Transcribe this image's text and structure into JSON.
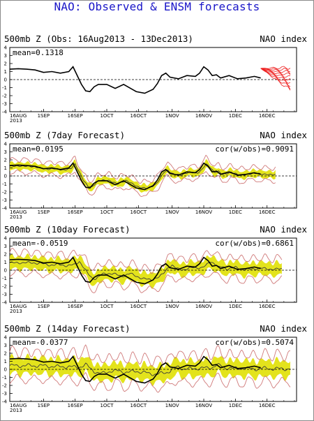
{
  "title": "NAO: Observed & ENSM forecasts",
  "colors": {
    "title": "#1a16c8",
    "observed": "#000000",
    "forecast_line": "#3a3a3a",
    "spread": "#e3e31c",
    "envelope": "#d07a7a",
    "members": "#ee2222"
  },
  "chart_data": [
    {
      "type": "line",
      "title": "500mb Z (Obs: 16Aug2013 - 13Dec2013)",
      "right_label": "NAO index",
      "mean_label": "mean=0.1318",
      "cor_label": "",
      "ylim": [
        -4,
        4
      ],
      "yticks": [
        "4",
        "3",
        "2",
        "1",
        "0",
        "-1",
        "-2",
        "-3",
        "-4"
      ],
      "xticks": [
        "16AUG\n2013",
        "1SEP",
        "16SEP",
        "1OCT",
        "16OCT",
        "1NOV",
        "16NOV",
        "1DEC",
        "16DEC"
      ],
      "x_day_labels": [
        0,
        16,
        31,
        46,
        61,
        77,
        92,
        107,
        122
      ],
      "grid": false,
      "series": [
        {
          "role": "observed",
          "x": [
            0,
            4,
            8,
            12,
            16,
            20,
            24,
            28,
            30,
            32,
            34,
            36,
            38,
            40,
            42,
            46,
            50,
            54,
            58,
            60,
            64,
            68,
            70,
            72,
            74,
            76,
            80,
            84,
            88,
            90,
            92,
            94,
            96,
            98,
            100,
            104,
            108,
            112,
            116,
            119
          ],
          "values": [
            1.3,
            1.35,
            1.3,
            1.2,
            0.9,
            1.0,
            0.8,
            1.0,
            1.6,
            0.5,
            -0.6,
            -1.4,
            -1.5,
            -0.9,
            -0.6,
            -0.6,
            -1.1,
            -0.6,
            -1.2,
            -1.5,
            -1.7,
            -1.2,
            -0.5,
            0.5,
            0.8,
            0.3,
            0.1,
            0.5,
            0.4,
            0.8,
            1.6,
            1.2,
            0.5,
            0.6,
            0.2,
            0.5,
            0.1,
            0.2,
            0.4,
            0.2
          ]
        },
        {
          "role": "ensemble-forecast",
          "x_start": 119,
          "x_end": 133,
          "members": 10,
          "end_range": [
            -1.3,
            1.5
          ],
          "start_value": 1.4
        }
      ]
    },
    {
      "type": "line",
      "title": "500mb Z (7day Forecast)",
      "right_label": "NAO index",
      "mean_label": "mean=0.0195",
      "cor_label": "cor(w/obs)=0.9091",
      "ylim": [
        -4,
        4
      ],
      "yticks": [
        "4",
        "3",
        "2",
        "1",
        "0",
        "-1",
        "-2",
        "-3",
        "-4"
      ],
      "xticks": [
        "16AUG\n2013",
        "1SEP",
        "16SEP",
        "1OCT",
        "16OCT",
        "1NOV",
        "16NOV",
        "1DEC",
        "16DEC"
      ],
      "grid": false,
      "series": [
        {
          "role": "observed",
          "x": [
            0,
            4,
            8,
            12,
            16,
            20,
            24,
            28,
            30,
            32,
            34,
            36,
            38,
            40,
            42,
            46,
            50,
            54,
            58,
            60,
            64,
            68,
            70,
            72,
            74,
            76,
            80,
            84,
            88,
            90,
            92,
            94,
            96,
            98,
            100,
            104,
            108,
            112,
            116,
            119
          ],
          "values": [
            1.3,
            1.35,
            1.3,
            1.2,
            0.9,
            1.0,
            0.8,
            1.0,
            1.6,
            0.5,
            -0.6,
            -1.4,
            -1.5,
            -0.9,
            -0.6,
            -0.6,
            -1.1,
            -0.6,
            -1.2,
            -1.5,
            -1.7,
            -1.2,
            -0.5,
            0.5,
            0.8,
            0.3,
            0.1,
            0.5,
            0.4,
            0.8,
            1.6,
            1.2,
            0.5,
            0.6,
            0.2,
            0.5,
            0.1,
            0.2,
            0.4,
            0.2
          ]
        },
        {
          "role": "ensemble-mean",
          "lag": 1.0,
          "damping": 0.92,
          "spread_inner": 0.45,
          "spread_outer": 0.8,
          "x_end": 126
        }
      ]
    },
    {
      "type": "line",
      "title": "500mb Z (10day Forecast)",
      "right_label": "NAO index",
      "mean_label": "mean=-0.0519",
      "cor_label": "cor(w/obs)=0.6861",
      "ylim": [
        -4,
        4
      ],
      "yticks": [
        "4",
        "3",
        "2",
        "1",
        "0",
        "-1",
        "-2",
        "-3",
        "-4"
      ],
      "xticks": [
        "16AUG\n2013",
        "1SEP",
        "16SEP",
        "1OCT",
        "16OCT",
        "1NOV",
        "16NOV",
        "1DEC",
        "16DEC"
      ],
      "grid": false,
      "series": [
        {
          "role": "observed",
          "x": [
            0,
            4,
            8,
            12,
            16,
            20,
            24,
            28,
            30,
            32,
            34,
            36,
            38,
            40,
            42,
            46,
            50,
            54,
            58,
            60,
            64,
            68,
            70,
            72,
            74,
            76,
            80,
            84,
            88,
            90,
            92,
            94,
            96,
            98,
            100,
            104,
            108,
            112,
            116,
            119
          ],
          "values": [
            1.3,
            1.35,
            1.3,
            1.2,
            0.9,
            1.0,
            0.8,
            1.0,
            1.6,
            0.5,
            -0.6,
            -1.4,
            -1.5,
            -0.9,
            -0.6,
            -0.6,
            -1.1,
            -0.6,
            -1.2,
            -1.5,
            -1.7,
            -1.2,
            -0.5,
            0.5,
            0.8,
            0.3,
            0.1,
            0.5,
            0.4,
            0.8,
            1.6,
            1.2,
            0.5,
            0.6,
            0.2,
            0.5,
            0.1,
            0.2,
            0.4,
            0.2
          ]
        },
        {
          "role": "ensemble-mean",
          "lag": 3.0,
          "damping": 0.7,
          "spread_inner": 0.8,
          "spread_outer": 1.3,
          "x_end": 129
        }
      ]
    },
    {
      "type": "line",
      "title": "500mb Z (14day Forecast)",
      "right_label": "NAO index",
      "mean_label": "mean=-0.0377",
      "cor_label": "cor(w/obs)=0.5074",
      "ylim": [
        -4,
        4
      ],
      "yticks": [
        "4",
        "3",
        "2",
        "1",
        "0",
        "-1",
        "-2",
        "-3",
        "-4"
      ],
      "xticks": [
        "16AUG\n2013",
        "1SEP",
        "16SEP",
        "1OCT",
        "16OCT",
        "1NOV",
        "16NOV",
        "1DEC",
        "16DEC"
      ],
      "grid": false,
      "series": [
        {
          "role": "observed",
          "x": [
            0,
            4,
            8,
            12,
            16,
            20,
            24,
            28,
            30,
            32,
            34,
            36,
            38,
            40,
            42,
            46,
            50,
            54,
            58,
            60,
            64,
            68,
            70,
            72,
            74,
            76,
            80,
            84,
            88,
            90,
            92,
            94,
            96,
            98,
            100,
            104,
            108,
            112,
            116,
            119
          ],
          "values": [
            1.3,
            1.35,
            1.3,
            1.2,
            0.9,
            1.0,
            0.8,
            1.0,
            1.6,
            0.5,
            -0.6,
            -1.4,
            -1.5,
            -0.9,
            -0.6,
            -0.6,
            -1.1,
            -0.6,
            -1.2,
            -1.5,
            -1.7,
            -1.2,
            -0.5,
            0.5,
            0.8,
            0.3,
            0.1,
            0.5,
            0.4,
            0.8,
            1.6,
            1.2,
            0.5,
            0.6,
            0.2,
            0.5,
            0.1,
            0.2,
            0.4,
            0.2
          ]
        },
        {
          "role": "ensemble-mean",
          "lag": 6.0,
          "damping": 0.35,
          "spread_inner": 1.0,
          "spread_outer": 1.7,
          "x_end": 133
        }
      ]
    }
  ]
}
